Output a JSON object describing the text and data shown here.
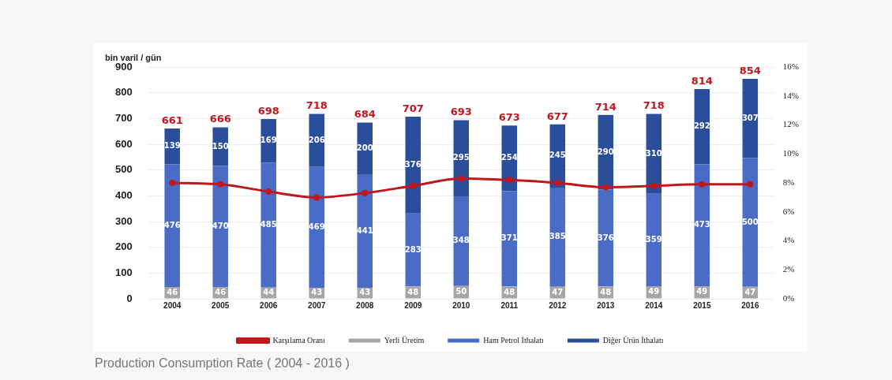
{
  "chart_data": {
    "type": "bar",
    "stacked": true,
    "ylabel": "bin varil / gün",
    "categories": [
      "2004",
      "2005",
      "2006",
      "2007",
      "2008",
      "2009",
      "2010",
      "2011",
      "2012",
      "2013",
      "2014",
      "2015",
      "2016"
    ],
    "series": [
      {
        "name": "Yerli Üretim",
        "color": "#a6a6a6",
        "values": [
          46,
          46,
          44,
          43,
          43,
          48,
          50,
          48,
          47,
          48,
          49,
          49,
          47
        ],
        "value_labels": [
          "46",
          "46",
          "44",
          "43",
          "43",
          "48",
          "50",
          "48",
          "47",
          "48",
          "49",
          "49",
          "47"
        ]
      },
      {
        "name": "Ham Petrol İthalatı",
        "color": "#4a6cc6",
        "values": [
          476,
          470,
          485,
          469,
          441,
          283,
          348,
          371,
          385,
          376,
          359,
          473,
          500
        ],
        "value_labels": [
          "476",
          "470",
          "485",
          "469",
          "441",
          "283",
          "348",
          "371",
          "385",
          "376",
          "359",
          "473",
          "500"
        ]
      },
      {
        "name": "Diğer Ürün İthalatı",
        "color": "#2b4e9b",
        "values": [
          139,
          150,
          169,
          206,
          200,
          376,
          295,
          254,
          245,
          290,
          310,
          292,
          307
        ],
        "value_labels": [
          "139",
          "150",
          "169",
          "206",
          "200",
          "376",
          "295",
          "254",
          "245",
          "290",
          "310",
          "292",
          "307"
        ]
      },
      {
        "name": "Karşılama Oranı",
        "type": "line",
        "axis": "y2",
        "color": "#c0161e",
        "marker": "circle",
        "values": [
          8.0,
          7.9,
          7.4,
          7.0,
          7.3,
          7.8,
          8.3,
          8.2,
          8.0,
          7.7,
          7.8,
          7.9,
          7.9
        ]
      }
    ],
    "totals": [
      "661",
      "666",
      "698",
      "718",
      "684",
      "707",
      "693",
      "673",
      "677",
      "714",
      "718",
      "814",
      "854"
    ],
    "ylim": [
      0,
      900
    ],
    "yticks": [
      0,
      100,
      200,
      300,
      400,
      500,
      600,
      700,
      800,
      900
    ],
    "y2lim": [
      0,
      16
    ],
    "y2ticks": [
      {
        "value": 0,
        "label": "0%"
      },
      {
        "value": 2,
        "label": "2%"
      },
      {
        "value": 4,
        "label": "4%"
      },
      {
        "value": 6,
        "label": "6%"
      },
      {
        "value": 8,
        "label": "8%"
      },
      {
        "value": 10,
        "label": "10%"
      },
      {
        "value": 12,
        "label": "12%"
      },
      {
        "value": 14,
        "label": "14%"
      },
      {
        "value": 16,
        "label": "16%"
      }
    ],
    "grid": "y",
    "legend": "bottom",
    "annotations": [
      "Production Consumption Rate ( 2004 - 2016 )"
    ]
  }
}
